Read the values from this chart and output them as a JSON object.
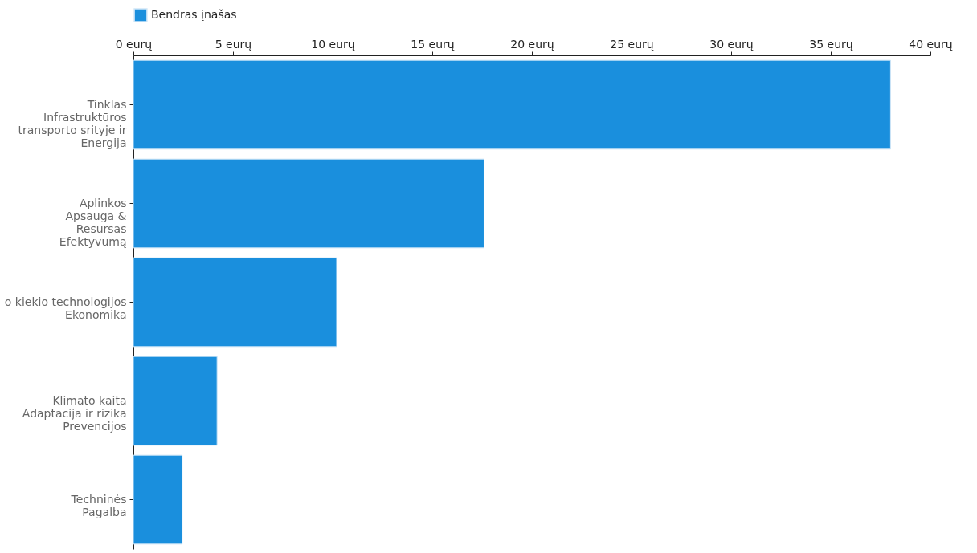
{
  "chart_data": {
    "type": "bar",
    "orientation": "horizontal",
    "categories": [
      "Tinklas\nInfrastruktūros\ntransporto srityje ir\nEnergija",
      "Aplinkos\nApsauga &\nResursas\nEfektyvumą",
      "o kiekio technologijos\nEkonomika",
      "Klimato kaita\nAdaptacija ir rizika\nPrevencijos",
      "Techninės\nPagalba"
    ],
    "series": [
      {
        "name": "Bendras įnašas",
        "color": "#1a8fdd",
        "values": [
          38,
          17.6,
          10.2,
          4.2,
          2.45
        ]
      }
    ],
    "xlim": [
      0,
      40
    ],
    "xticks": [
      {
        "value": 0,
        "label": "0 eurų"
      },
      {
        "value": 5,
        "label": "5 eurų"
      },
      {
        "value": 10,
        "label": "10 eurų"
      },
      {
        "value": 15,
        "label": "15 eurų"
      },
      {
        "value": 20,
        "label": "20 eurų"
      },
      {
        "value": 25,
        "label": "25 eurų"
      },
      {
        "value": 30,
        "label": "30 eurų"
      },
      {
        "value": 35,
        "label": "35 eurų"
      },
      {
        "value": 40,
        "label": "40 eurų"
      }
    ],
    "grid": false,
    "legend": "top"
  }
}
